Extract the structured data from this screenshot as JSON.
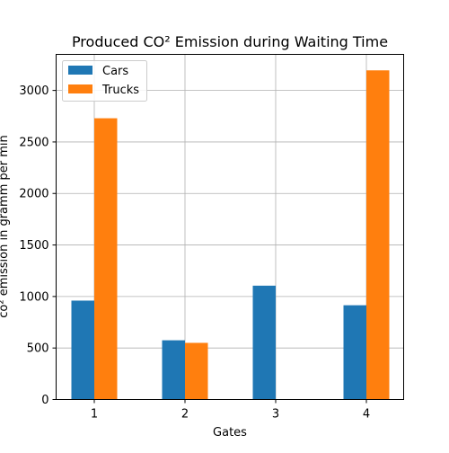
{
  "chart_data": {
    "type": "bar",
    "title": "Produced CO² Emission during Waiting Time",
    "xlabel": "Gates",
    "ylabel": "co² emission in gramm per min",
    "categories": [
      "1",
      "2",
      "3",
      "4"
    ],
    "series": [
      {
        "name": "Cars",
        "color": "#1f77b4",
        "values": [
          960,
          575,
          1105,
          915
        ]
      },
      {
        "name": "Trucks",
        "color": "#ff7f0e",
        "values": [
          2730,
          550,
          0,
          3195
        ]
      }
    ],
    "ylim": [
      0,
      3350
    ],
    "yticks": [
      0,
      500,
      1000,
      1500,
      2000,
      2500,
      3000
    ],
    "grid": true,
    "legend_position": "top-left"
  }
}
